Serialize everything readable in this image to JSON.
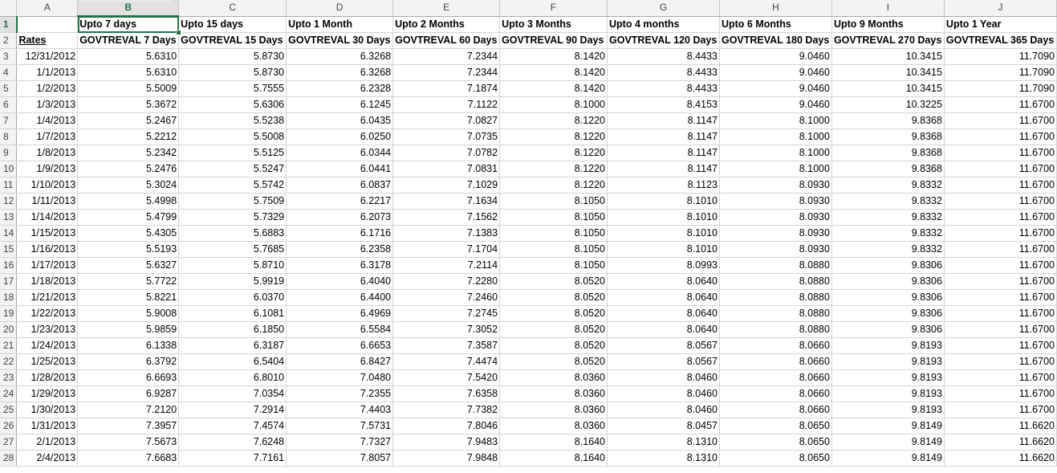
{
  "columns": [
    "A",
    "B",
    "C",
    "D",
    "E",
    "F",
    "G",
    "H",
    "I",
    "J"
  ],
  "selected_column": "B",
  "selected_row": "1",
  "header_row": {
    "row_num": "1",
    "cells": [
      "",
      "Upto 7 days",
      "Upto 15 days",
      "Upto 1 Month",
      "Upto 2  Months",
      "Upto 3  Months",
      "Upto 4 months",
      "Upto 6 Months",
      "Upto 9 Months",
      "Upto 1 Year"
    ]
  },
  "subheader_row": {
    "row_num": "2",
    "cells": [
      "Rates",
      "GOVTREVAL 7 Days",
      "GOVTREVAL 15 Days",
      "GOVTREVAL 30 Days",
      "GOVTREVAL 60 Days",
      "GOVTREVAL 90 Days",
      "GOVTREVAL 120 Days",
      "GOVTREVAL 180 Days",
      "GOVTREVAL 270 Days",
      "GOVTREVAL 365 Days"
    ]
  },
  "rows": [
    {
      "n": "3",
      "date": "12/31/2012",
      "v": [
        "5.6310",
        "5.8730",
        "6.3268",
        "7.2344",
        "8.1420",
        "8.4433",
        "9.0460",
        "10.3415",
        "11.7090"
      ]
    },
    {
      "n": "4",
      "date": "1/1/2013",
      "v": [
        "5.6310",
        "5.8730",
        "6.3268",
        "7.2344",
        "8.1420",
        "8.4433",
        "9.0460",
        "10.3415",
        "11.7090"
      ]
    },
    {
      "n": "5",
      "date": "1/2/2013",
      "v": [
        "5.5009",
        "5.7555",
        "6.2328",
        "7.1874",
        "8.1420",
        "8.4433",
        "9.0460",
        "10.3415",
        "11.7090"
      ]
    },
    {
      "n": "6",
      "date": "1/3/2013",
      "v": [
        "5.3672",
        "5.6306",
        "6.1245",
        "7.1122",
        "8.1000",
        "8.4153",
        "9.0460",
        "10.3225",
        "11.6700"
      ]
    },
    {
      "n": "7",
      "date": "1/4/2013",
      "v": [
        "5.2467",
        "5.5238",
        "6.0435",
        "7.0827",
        "8.1220",
        "8.1147",
        "8.1000",
        "9.8368",
        "11.6700"
      ]
    },
    {
      "n": "8",
      "date": "1/7/2013",
      "v": [
        "5.2212",
        "5.5008",
        "6.0250",
        "7.0735",
        "8.1220",
        "8.1147",
        "8.1000",
        "9.8368",
        "11.6700"
      ]
    },
    {
      "n": "9",
      "date": "1/8/2013",
      "v": [
        "5.2342",
        "5.5125",
        "6.0344",
        "7.0782",
        "8.1220",
        "8.1147",
        "8.1000",
        "9.8368",
        "11.6700"
      ]
    },
    {
      "n": "10",
      "date": "1/9/2013",
      "v": [
        "5.2476",
        "5.5247",
        "6.0441",
        "7.0831",
        "8.1220",
        "8.1147",
        "8.1000",
        "9.8368",
        "11.6700"
      ]
    },
    {
      "n": "11",
      "date": "1/10/2013",
      "v": [
        "5.3024",
        "5.5742",
        "6.0837",
        "7.1029",
        "8.1220",
        "8.1123",
        "8.0930",
        "9.8332",
        "11.6700"
      ]
    },
    {
      "n": "12",
      "date": "1/11/2013",
      "v": [
        "5.4998",
        "5.7509",
        "6.2217",
        "7.1634",
        "8.1050",
        "8.1010",
        "8.0930",
        "9.8332",
        "11.6700"
      ]
    },
    {
      "n": "13",
      "date": "1/14/2013",
      "v": [
        "5.4799",
        "5.7329",
        "6.2073",
        "7.1562",
        "8.1050",
        "8.1010",
        "8.0930",
        "9.8332",
        "11.6700"
      ]
    },
    {
      "n": "14",
      "date": "1/15/2013",
      "v": [
        "5.4305",
        "5.6883",
        "6.1716",
        "7.1383",
        "8.1050",
        "8.1010",
        "8.0930",
        "9.8332",
        "11.6700"
      ]
    },
    {
      "n": "15",
      "date": "1/16/2013",
      "v": [
        "5.5193",
        "5.7685",
        "6.2358",
        "7.1704",
        "8.1050",
        "8.1010",
        "8.0930",
        "9.8332",
        "11.6700"
      ]
    },
    {
      "n": "16",
      "date": "1/17/2013",
      "v": [
        "5.6327",
        "5.8710",
        "6.3178",
        "7.2114",
        "8.1050",
        "8.0993",
        "8.0880",
        "9.8306",
        "11.6700"
      ]
    },
    {
      "n": "17",
      "date": "1/18/2013",
      "v": [
        "5.7722",
        "5.9919",
        "6.4040",
        "7.2280",
        "8.0520",
        "8.0640",
        "8.0880",
        "9.8306",
        "11.6700"
      ]
    },
    {
      "n": "18",
      "date": "1/21/2013",
      "v": [
        "5.8221",
        "6.0370",
        "6.4400",
        "7.2460",
        "8.0520",
        "8.0640",
        "8.0880",
        "9.8306",
        "11.6700"
      ]
    },
    {
      "n": "19",
      "date": "1/22/2013",
      "v": [
        "5.9008",
        "6.1081",
        "6.4969",
        "7.2745",
        "8.0520",
        "8.0640",
        "8.0880",
        "9.8306",
        "11.6700"
      ]
    },
    {
      "n": "20",
      "date": "1/23/2013",
      "v": [
        "5.9859",
        "6.1850",
        "6.5584",
        "7.3052",
        "8.0520",
        "8.0640",
        "8.0880",
        "9.8306",
        "11.6700"
      ]
    },
    {
      "n": "21",
      "date": "1/24/2013",
      "v": [
        "6.1338",
        "6.3187",
        "6.6653",
        "7.3587",
        "8.0520",
        "8.0567",
        "8.0660",
        "9.8193",
        "11.6700"
      ]
    },
    {
      "n": "22",
      "date": "1/25/2013",
      "v": [
        "6.3792",
        "6.5404",
        "6.8427",
        "7.4474",
        "8.0520",
        "8.0567",
        "8.0660",
        "9.8193",
        "11.6700"
      ]
    },
    {
      "n": "23",
      "date": "1/28/2013",
      "v": [
        "6.6693",
        "6.8010",
        "7.0480",
        "7.5420",
        "8.0360",
        "8.0460",
        "8.0660",
        "9.8193",
        "11.6700"
      ]
    },
    {
      "n": "24",
      "date": "1/29/2013",
      "v": [
        "6.9287",
        "7.0354",
        "7.2355",
        "7.6358",
        "8.0360",
        "8.0460",
        "8.0660",
        "9.8193",
        "11.6700"
      ]
    },
    {
      "n": "25",
      "date": "1/30/2013",
      "v": [
        "7.2120",
        "7.2914",
        "7.4403",
        "7.7382",
        "8.0360",
        "8.0460",
        "8.0660",
        "9.8193",
        "11.6700"
      ]
    },
    {
      "n": "26",
      "date": "1/31/2013",
      "v": [
        "7.3957",
        "7.4574",
        "7.5731",
        "7.8046",
        "8.0360",
        "8.0457",
        "8.0650",
        "9.8149",
        "11.6620"
      ]
    },
    {
      "n": "27",
      "date": "2/1/2013",
      "v": [
        "7.5673",
        "7.6248",
        "7.7327",
        "7.9483",
        "8.1640",
        "8.1310",
        "8.0650",
        "9.8149",
        "11.6620"
      ]
    },
    {
      "n": "28",
      "date": "2/4/2013",
      "v": [
        "7.6683",
        "7.7161",
        "7.8057",
        "7.9848",
        "8.1640",
        "8.1310",
        "8.0650",
        "9.8149",
        "11.6620"
      ]
    }
  ]
}
